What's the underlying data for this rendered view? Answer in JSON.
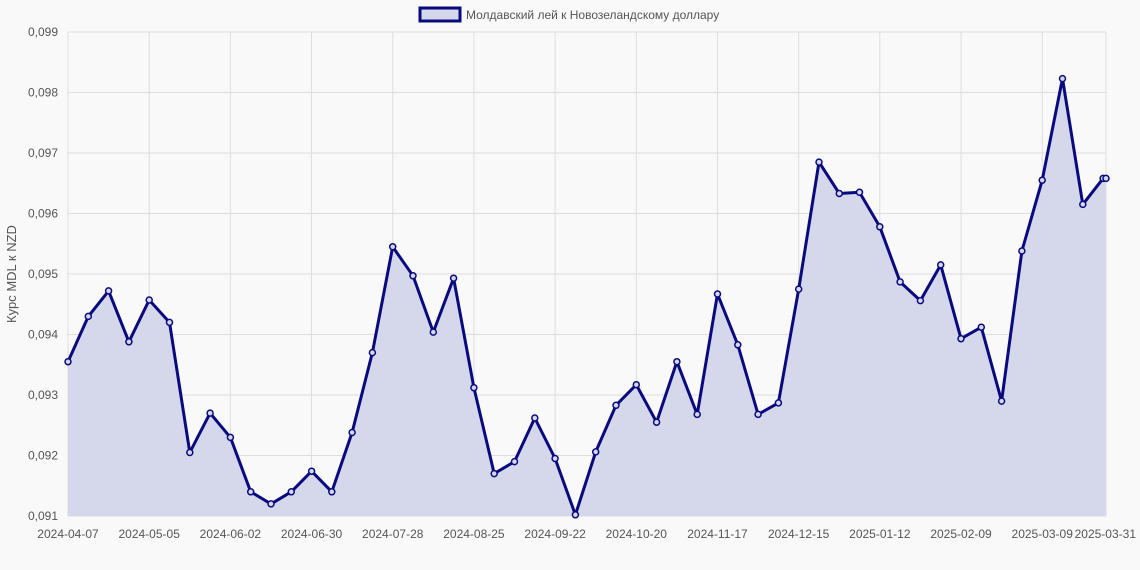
{
  "chart_data": {
    "type": "area",
    "legend": {
      "label": "Молдавский лей к Новозеландскому доллару",
      "position": "top-center"
    },
    "ylabel": "Курс MDL к NZD",
    "ylim": [
      0.091,
      0.099
    ],
    "yticks": [
      "0,099",
      "0,098",
      "0,097",
      "0,096",
      "0,095",
      "0,094",
      "0,093",
      "0,092",
      "0,091"
    ],
    "xticks": [
      "2024-04-07",
      "2024-05-05",
      "2024-06-02",
      "2024-06-30",
      "2024-07-28",
      "2024-08-25",
      "2024-09-22",
      "2024-10-20",
      "2024-11-17",
      "2024-12-15",
      "2025-01-12",
      "2025-02-09",
      "2025-03-09",
      "2025-03-31"
    ],
    "grid": true,
    "colors": {
      "line": "#0a0a80",
      "fill": "#d5d8ea",
      "grid": "#dddddd",
      "legend_fill": "#d5d8ea"
    },
    "series": [
      {
        "name": "Молдавский лей к Новозеландскому доллару",
        "x": [
          "2024-04-07",
          "2024-04-14",
          "2024-04-21",
          "2024-04-28",
          "2024-05-05",
          "2024-05-12",
          "2024-05-19",
          "2024-05-26",
          "2024-06-02",
          "2024-06-09",
          "2024-06-16",
          "2024-06-23",
          "2024-06-30",
          "2024-07-07",
          "2024-07-14",
          "2024-07-21",
          "2024-07-28",
          "2024-08-04",
          "2024-08-11",
          "2024-08-18",
          "2024-08-25",
          "2024-09-01",
          "2024-09-08",
          "2024-09-15",
          "2024-09-22",
          "2024-09-29",
          "2024-10-06",
          "2024-10-13",
          "2024-10-20",
          "2024-10-27",
          "2024-11-03",
          "2024-11-10",
          "2024-11-17",
          "2024-11-24",
          "2024-12-01",
          "2024-12-08",
          "2024-12-15",
          "2024-12-22",
          "2024-12-29",
          "2025-01-05",
          "2025-01-12",
          "2025-01-19",
          "2025-01-26",
          "2025-02-02",
          "2025-02-09",
          "2025-02-16",
          "2025-02-23",
          "2025-03-02",
          "2025-03-09",
          "2025-03-16",
          "2025-03-23",
          "2025-03-30",
          "2025-03-31"
        ],
        "values": [
          0.09355,
          0.0943,
          0.09472,
          0.09388,
          0.09457,
          0.0942,
          0.09205,
          0.0927,
          0.0923,
          0.0914,
          0.0912,
          0.0914,
          0.09174,
          0.0914,
          0.09238,
          0.0937,
          0.09545,
          0.09497,
          0.09404,
          0.09493,
          0.09312,
          0.0917,
          0.0919,
          0.09262,
          0.09195,
          0.09102,
          0.09206,
          0.09283,
          0.09317,
          0.09255,
          0.09355,
          0.09268,
          0.09467,
          0.09383,
          0.09268,
          0.09287,
          0.09475,
          0.09685,
          0.09633,
          0.09635,
          0.09578,
          0.09487,
          0.09456,
          0.09515,
          0.09393,
          0.09412,
          0.0929,
          0.09538,
          0.09655,
          0.09823,
          0.09615,
          0.09658,
          0.09658
        ]
      }
    ]
  }
}
